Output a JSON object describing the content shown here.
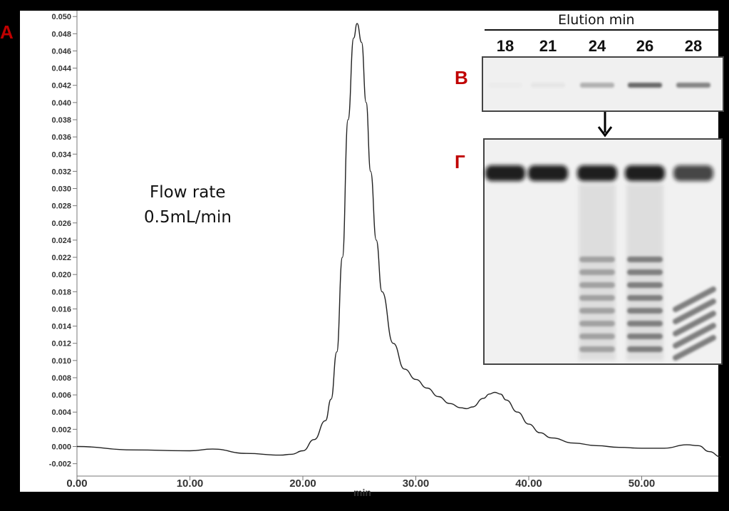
{
  "chart_data": {
    "type": "line",
    "title": "",
    "xlabel": "min",
    "ylabel": "",
    "xlim": [
      0,
      57
    ],
    "ylim": [
      -0.003,
      0.051
    ],
    "x_ticks": [
      "0.00",
      "10.00",
      "20.00",
      "30.00",
      "40.00",
      "50.00"
    ],
    "y_ticks": [
      "0.050",
      "0.048",
      "0.046",
      "0.044",
      "0.042",
      "0.040",
      "0.038",
      "0.036",
      "0.034",
      "0.032",
      "0.030",
      "0.028",
      "0.026",
      "0.024",
      "0.022",
      "0.020",
      "0.018",
      "0.016",
      "0.014",
      "0.012",
      "0.010",
      "0.008",
      "0.006",
      "0.004",
      "0.002",
      "0.000",
      "-0.002"
    ],
    "grid": false,
    "series": [
      {
        "x": [
          0,
          5,
          10,
          12,
          15,
          18,
          19,
          20,
          21,
          22,
          22.5,
          23,
          23.5,
          24,
          24.5,
          24.8,
          25.2,
          25.6,
          26,
          26.5,
          27,
          28,
          29,
          30,
          31,
          32,
          33,
          34,
          34.5,
          35,
          36,
          36.5,
          37,
          37.5,
          38,
          39,
          40,
          41,
          42,
          44,
          46,
          48,
          50,
          52,
          54,
          55,
          56,
          57
        ],
        "values": [
          0.0,
          -0.0004,
          -0.0005,
          -0.0003,
          -0.0008,
          -0.001,
          -0.0009,
          -0.0005,
          0.0008,
          0.003,
          0.0055,
          0.011,
          0.022,
          0.038,
          0.0475,
          0.0492,
          0.047,
          0.04,
          0.032,
          0.024,
          0.018,
          0.012,
          0.009,
          0.0078,
          0.0068,
          0.0058,
          0.005,
          0.0045,
          0.0044,
          0.0046,
          0.0056,
          0.0061,
          0.0063,
          0.0061,
          0.0054,
          0.004,
          0.0026,
          0.0016,
          0.001,
          0.0004,
          0.0001,
          -0.0001,
          -0.0002,
          -0.0002,
          0.0002,
          0.0001,
          -0.0006,
          -0.0012
        ]
      }
    ]
  },
  "panels": {
    "a_label": "A",
    "b_label": "B",
    "c_label": "Г"
  },
  "annotation": {
    "line1": "Flow rate",
    "line2": "0.5mL/min"
  },
  "gel": {
    "elution_title": "Elution min",
    "lanes": [
      "18",
      "21",
      "24",
      "26",
      "28"
    ],
    "b_band_intensity": [
      0.02,
      0.05,
      0.35,
      0.75,
      0.6
    ]
  }
}
